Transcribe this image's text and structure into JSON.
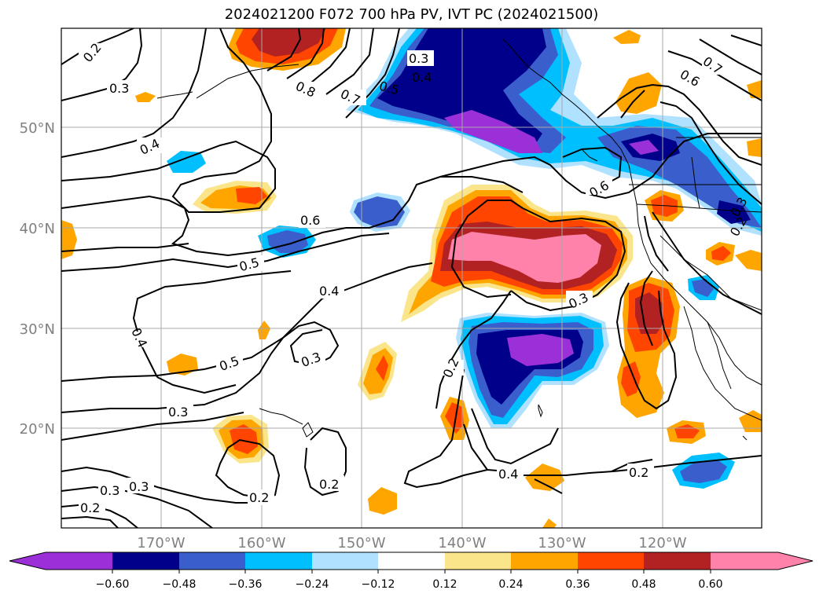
{
  "title": "2024021200 F072 700 hPa PV, IVT PC (2024021500)",
  "lon_labels": [
    "170°W",
    "160°W",
    "150°W",
    "140°W",
    "130°W",
    "120°W"
  ],
  "lat_labels": [
    "50°N",
    "40°N",
    "30°N",
    "20°N"
  ],
  "colorbar": {
    "ticks": [
      "−0.60",
      "−0.48",
      "−0.36",
      "−0.24",
      "−0.12",
      "0.12",
      "0.24",
      "0.36",
      "0.48",
      "0.60"
    ],
    "colors": [
      "#9b30d8",
      "#00008b",
      "#3a5fcd",
      "#00bfff",
      "#b0e2ff",
      "#ffffff",
      "#fbe58a",
      "#ffa500",
      "#ff4500",
      "#b22222",
      "#ff82ab"
    ]
  },
  "contour_labels": {
    "c1": "0.2",
    "c2": "0.3",
    "c3": "0.4",
    "c4": "0.3",
    "c5": "0.4",
    "c6": "0.5",
    "c7": "0.8",
    "c8": "0.7",
    "c9": "0.6",
    "c10": "0.7",
    "c11": "0.6",
    "c12": "0.6",
    "c13": "0.5",
    "c14": "0.4",
    "c15": "0.3",
    "c16": "0.4",
    "c17": "0.5",
    "c18": "0.3",
    "c19": "0.2",
    "c20": "0.3",
    "c21": "0.2",
    "c22": "0.3",
    "c23": "0.2",
    "c24": "0.4",
    "c25": "0.2",
    "c26": "0.2",
    "c27": "0.2",
    "c28": "0.3",
    "c29": "0.3"
  }
}
